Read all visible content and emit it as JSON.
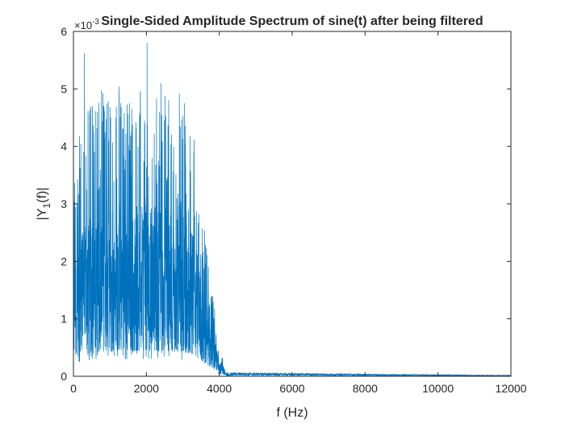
{
  "chart_data": {
    "type": "line",
    "title": "Single-Sided Amplitude Spectrum of sine(t) after being filtered",
    "xlabel": "f (Hz)",
    "ylabel_base": "|Y",
    "ylabel_sub": "1",
    "ylabel_rest": "(f)|",
    "y_exponent_label": "×10",
    "y_exponent_power": "-3",
    "xlim": [
      0,
      12000
    ],
    "ylim": [
      0,
      0.006
    ],
    "x_ticks": [
      0,
      2000,
      4000,
      6000,
      8000,
      10000,
      12000
    ],
    "x_tick_labels": [
      "0",
      "2000",
      "4000",
      "6000",
      "8000",
      "10000",
      "12000"
    ],
    "y_ticks": [
      0,
      0.001,
      0.002,
      0.003,
      0.004,
      0.005,
      0.006
    ],
    "y_tick_labels": [
      "0",
      "1",
      "2",
      "3",
      "4",
      "5",
      "6"
    ],
    "grid": false,
    "series": [
      {
        "color": "#0072BD",
        "description": "dense noisy spectrum, roughly 0.0005-0.0035 between 0 and 3500 Hz, decaying to ~0 by 4200 Hz, near zero afterwards",
        "peaks": [
          {
            "x": 0,
            "y": 0.0039
          },
          {
            "x": 300,
            "y": 0.00562
          },
          {
            "x": 520,
            "y": 0.0047
          },
          {
            "x": 1000,
            "y": 0.00468
          },
          {
            "x": 1950,
            "y": 0.00445
          },
          {
            "x": 2020,
            "y": 0.0058
          },
          {
            "x": 2400,
            "y": 0.0051
          },
          {
            "x": 3050,
            "y": 0.00475
          }
        ],
        "envelope": [
          {
            "x": 0,
            "y": 0.0022
          },
          {
            "x": 500,
            "y": 0.0028
          },
          {
            "x": 1000,
            "y": 0.0029
          },
          {
            "x": 1500,
            "y": 0.0029
          },
          {
            "x": 2000,
            "y": 0.003
          },
          {
            "x": 2500,
            "y": 0.0029
          },
          {
            "x": 3000,
            "y": 0.0028
          },
          {
            "x": 3300,
            "y": 0.0025
          },
          {
            "x": 3500,
            "y": 0.0018
          },
          {
            "x": 3800,
            "y": 0.0009
          },
          {
            "x": 4000,
            "y": 0.0003
          },
          {
            "x": 4200,
            "y": 4e-05
          },
          {
            "x": 12000,
            "y": 1e-05
          }
        ]
      }
    ]
  }
}
